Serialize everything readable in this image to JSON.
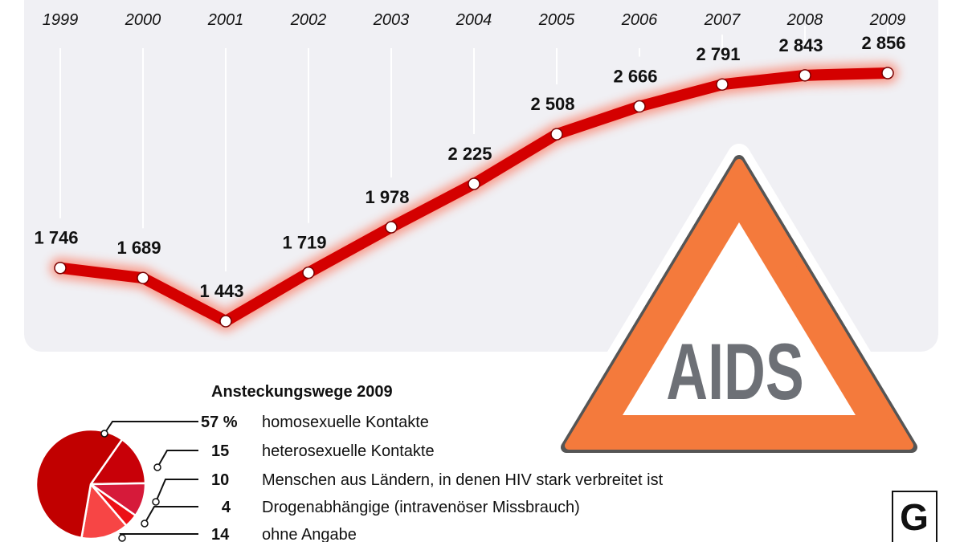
{
  "chart_data": [
    {
      "type": "line",
      "categories": [
        "1999",
        "2000",
        "2001",
        "2002",
        "2003",
        "2004",
        "2005",
        "2006",
        "2007",
        "2008",
        "2009"
      ],
      "values": [
        1746,
        1689,
        1443,
        1719,
        1978,
        2225,
        2508,
        2666,
        2791,
        2843,
        2856
      ],
      "value_labels": [
        "1 746",
        "1 689",
        "1 443",
        "1 719",
        "1 978",
        "2 225",
        "2 508",
        "2 666",
        "2 791",
        "2 843",
        "2 856"
      ],
      "grid": false,
      "color": "#d40000"
    },
    {
      "type": "pie",
      "title": "Ansteckungswege 2009",
      "slices": [
        {
          "label": "homosexuelle Kontakte",
          "value": 57,
          "value_label": "57 %",
          "color": "#c10000"
        },
        {
          "label": "heterosexuelle Kontakte",
          "value": 15,
          "value_label": "15",
          "color": "#c80008"
        },
        {
          "label": "Menschen aus Ländern, in denen HIV stark verbreitet ist",
          "value": 10,
          "value_label": "10",
          "color": "#d61a3a"
        },
        {
          "label": "Drogenabhängige (intravenöser Missbrauch)",
          "value": 4,
          "value_label": "4",
          "color": "#ec1016"
        },
        {
          "label": "ohne Angabe",
          "value": 14,
          "value_label": "14",
          "color": "#f74545"
        }
      ]
    }
  ],
  "sign": {
    "text": "AIDS",
    "color": "#f47a3c",
    "text_color": "#6d7076"
  },
  "logo": {
    "text": "G"
  }
}
